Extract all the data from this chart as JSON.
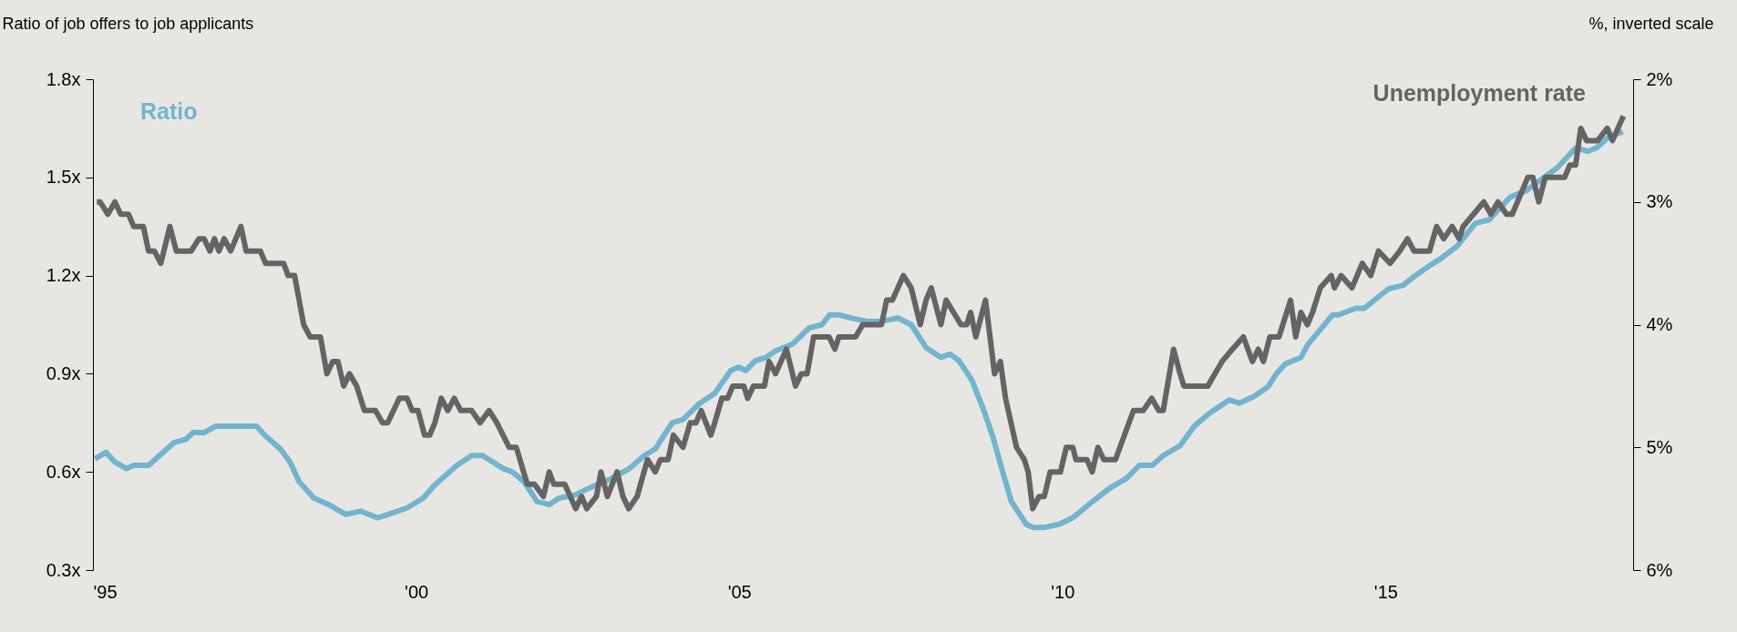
{
  "chart_data": {
    "type": "line",
    "ylabel": "Ratio of job offers to job applicants",
    "y2label": "%, inverted scale",
    "xlim": [
      1995,
      2018.83
    ],
    "xticks": [
      {
        "value": 1995,
        "label": "'95"
      },
      {
        "value": 2000,
        "label": "'00"
      },
      {
        "value": 2005,
        "label": "'05"
      },
      {
        "value": 2010,
        "label": "'10"
      },
      {
        "value": 2015,
        "label": "'15"
      }
    ],
    "ylim": [
      0.3,
      1.8
    ],
    "yticks": [
      {
        "value": 0.3,
        "label": "0.3x"
      },
      {
        "value": 0.6,
        "label": "0.6x"
      },
      {
        "value": 0.9,
        "label": "0.9x"
      },
      {
        "value": 1.2,
        "label": "1.2x"
      },
      {
        "value": 1.5,
        "label": "1.5x"
      },
      {
        "value": 1.8,
        "label": "1.8x"
      }
    ],
    "y2lim": [
      6,
      2
    ],
    "y2ticks": [
      {
        "value": 2,
        "label": "2%"
      },
      {
        "value": 3,
        "label": "3%"
      },
      {
        "value": 4,
        "label": "4%"
      },
      {
        "value": 5,
        "label": "5%"
      },
      {
        "value": 6,
        "label": "6%"
      }
    ],
    "grid": false,
    "marker": "none",
    "line_style": "solid",
    "series": [
      {
        "name": "Ratio",
        "color": "#72b4cf",
        "axis": "y",
        "x": [
          1995.03,
          1995.2,
          1995.34,
          1995.52,
          1995.63,
          1995.86,
          1996.03,
          1996.26,
          1996.44,
          1996.55,
          1996.72,
          1996.9,
          1997.53,
          1997.67,
          1997.9,
          1998.05,
          1998.19,
          1998.42,
          1998.65,
          1998.91,
          1999.14,
          1999.4,
          1999.57,
          1999.86,
          2000.11,
          2000.29,
          2000.63,
          2000.86,
          2001.03,
          2001.35,
          2001.49,
          2001.67,
          2001.87,
          2002.06,
          2002.21,
          2002.47,
          2002.67,
          2003.02,
          2003.3,
          2003.53,
          2003.7,
          2003.96,
          2004.13,
          2004.39,
          2004.62,
          2004.87,
          2004.99,
          2005.1,
          2005.25,
          2005.42,
          2005.56,
          2005.82,
          2006.08,
          2006.28,
          2006.4,
          2006.54,
          2006.74,
          2006.97,
          2007.2,
          2007.46,
          2007.66,
          2007.89,
          2008.12,
          2008.26,
          2008.4,
          2008.6,
          2008.78,
          2008.92,
          2009.09,
          2009.21,
          2009.44,
          2009.55,
          2009.72,
          2009.95,
          2010.16,
          2010.47,
          2010.73,
          2010.99,
          2011.19,
          2011.39,
          2011.56,
          2011.82,
          2012.04,
          2012.28,
          2012.58,
          2012.74,
          2012.96,
          2013.18,
          2013.31,
          2013.45,
          2013.69,
          2013.8,
          2013.97,
          2014.18,
          2014.27,
          2014.54,
          2014.67,
          2014.86,
          2015.05,
          2015.27,
          2015.46,
          2015.68,
          2015.84,
          2016.11,
          2016.39,
          2016.6,
          2016.93,
          2017.18,
          2017.66,
          2017.8,
          2017.94,
          2018.13,
          2018.26,
          2018.43,
          2018.67
        ],
        "values": [
          0.64,
          0.66,
          0.63,
          0.61,
          0.62,
          0.62,
          0.65,
          0.69,
          0.7,
          0.72,
          0.72,
          0.74,
          0.74,
          0.71,
          0.67,
          0.63,
          0.57,
          0.52,
          0.5,
          0.47,
          0.48,
          0.46,
          0.47,
          0.49,
          0.52,
          0.56,
          0.62,
          0.65,
          0.65,
          0.61,
          0.6,
          0.57,
          0.51,
          0.5,
          0.52,
          0.53,
          0.55,
          0.58,
          0.61,
          0.65,
          0.67,
          0.75,
          0.76,
          0.81,
          0.84,
          0.91,
          0.92,
          0.91,
          0.94,
          0.95,
          0.97,
          0.99,
          1.04,
          1.05,
          1.08,
          1.08,
          1.07,
          1.06,
          1.06,
          1.07,
          1.05,
          0.98,
          0.95,
          0.96,
          0.94,
          0.88,
          0.79,
          0.71,
          0.59,
          0.51,
          0.44,
          0.43,
          0.43,
          0.44,
          0.46,
          0.51,
          0.55,
          0.58,
          0.62,
          0.62,
          0.65,
          0.68,
          0.74,
          0.78,
          0.82,
          0.81,
          0.83,
          0.86,
          0.9,
          0.93,
          0.95,
          0.99,
          1.03,
          1.08,
          1.08,
          1.1,
          1.1,
          1.13,
          1.16,
          1.17,
          1.2,
          1.23,
          1.25,
          1.29,
          1.36,
          1.37,
          1.44,
          1.46,
          1.53,
          1.56,
          1.59,
          1.58,
          1.59,
          1.62,
          1.64
        ]
      },
      {
        "name": "Unemployment rate",
        "color": "#646464",
        "axis": "y2",
        "x": [
          1995.06,
          1995.11,
          1995.23,
          1995.34,
          1995.43,
          1995.55,
          1995.63,
          1995.78,
          1995.86,
          1995.95,
          1996.05,
          1996.19,
          1996.29,
          1996.52,
          1996.64,
          1996.72,
          1996.81,
          1996.88,
          1996.95,
          1997.03,
          1997.13,
          1997.29,
          1997.37,
          1997.59,
          1997.67,
          1997.95,
          1998.02,
          1998.12,
          1998.19,
          1998.26,
          1998.36,
          1998.52,
          1998.62,
          1998.71,
          1998.79,
          1998.88,
          1998.97,
          1999.08,
          1999.2,
          1999.37,
          1999.48,
          1999.56,
          1999.74,
          1999.86,
          1999.94,
          2000.03,
          2000.13,
          2000.21,
          2000.29,
          2000.39,
          2000.49,
          2000.59,
          2000.69,
          2000.86,
          2000.99,
          2001.13,
          2001.25,
          2001.44,
          2001.55,
          2001.72,
          2001.83,
          2001.97,
          2002.06,
          2002.13,
          2002.3,
          2002.47,
          2002.56,
          2002.64,
          2002.79,
          2002.86,
          2002.96,
          2003.11,
          2003.2,
          2003.29,
          2003.42,
          2003.58,
          2003.7,
          2003.78,
          2003.9,
          2003.98,
          2004.13,
          2004.24,
          2004.33,
          2004.41,
          2004.56,
          2004.62,
          2004.73,
          2004.82,
          2004.9,
          2005.07,
          2005.13,
          2005.22,
          2005.39,
          2005.46,
          2005.56,
          2005.73,
          2005.87,
          2005.96,
          2006.05,
          2006.15,
          2006.39,
          2006.48,
          2006.54,
          2006.8,
          2006.91,
          2007.2,
          2007.28,
          2007.37,
          2007.54,
          2007.66,
          2007.8,
          2007.89,
          2007.97,
          2008.12,
          2008.2,
          2008.43,
          2008.52,
          2008.58,
          2008.66,
          2008.81,
          2008.95,
          2009.04,
          2009.12,
          2009.29,
          2009.41,
          2009.47,
          2009.54,
          2009.64,
          2009.72,
          2009.81,
          2009.97,
          2010.06,
          2010.16,
          2010.21,
          2010.38,
          2010.46,
          2010.55,
          2010.64,
          2010.82,
          2011.1,
          2011.25,
          2011.38,
          2011.49,
          2011.56,
          2011.72,
          2011.82,
          2011.88,
          2012.25,
          2012.47,
          2012.63,
          2012.8,
          2012.94,
          2013.03,
          2013.11,
          2013.21,
          2013.35,
          2013.53,
          2013.61,
          2013.69,
          2013.79,
          2013.87,
          2013.99,
          2014.16,
          2014.21,
          2014.31,
          2014.48,
          2014.64,
          2014.77,
          2014.89,
          2015.07,
          2015.22,
          2015.34,
          2015.44,
          2015.68,
          2015.79,
          2015.9,
          2016.03,
          2016.14,
          2016.2,
          2016.36,
          2016.52,
          2016.63,
          2016.74,
          2016.87,
          2016.96,
          2017.2,
          2017.28,
          2017.37,
          2017.47,
          2017.77,
          2017.85,
          2017.94,
          2018.02,
          2018.11,
          2018.28,
          2018.43,
          2018.51,
          2018.68
        ],
        "values": [
          3.0,
          3.0,
          3.1,
          3.0,
          3.1,
          3.1,
          3.2,
          3.2,
          3.4,
          3.4,
          3.5,
          3.2,
          3.4,
          3.4,
          3.3,
          3.3,
          3.4,
          3.3,
          3.4,
          3.3,
          3.4,
          3.2,
          3.4,
          3.4,
          3.5,
          3.5,
          3.6,
          3.6,
          3.8,
          4.0,
          4.1,
          4.1,
          4.4,
          4.3,
          4.3,
          4.5,
          4.4,
          4.5,
          4.7,
          4.7,
          4.8,
          4.8,
          4.6,
          4.6,
          4.7,
          4.7,
          4.9,
          4.9,
          4.8,
          4.6,
          4.7,
          4.6,
          4.7,
          4.7,
          4.8,
          4.7,
          4.8,
          5.0,
          5.0,
          5.3,
          5.3,
          5.4,
          5.2,
          5.3,
          5.3,
          5.5,
          5.4,
          5.5,
          5.4,
          5.2,
          5.4,
          5.2,
          5.4,
          5.5,
          5.4,
          5.1,
          5.2,
          5.1,
          5.1,
          4.9,
          5.0,
          4.8,
          4.8,
          4.7,
          4.9,
          4.8,
          4.6,
          4.6,
          4.5,
          4.5,
          4.6,
          4.5,
          4.5,
          4.3,
          4.4,
          4.2,
          4.5,
          4.4,
          4.4,
          4.1,
          4.1,
          4.2,
          4.1,
          4.1,
          4.0,
          4.0,
          3.8,
          3.8,
          3.6,
          3.7,
          4.0,
          3.8,
          3.7,
          4.0,
          3.8,
          4.0,
          4.0,
          3.9,
          4.1,
          3.8,
          4.4,
          4.3,
          4.6,
          5.0,
          5.1,
          5.2,
          5.5,
          5.4,
          5.4,
          5.2,
          5.2,
          5.0,
          5.0,
          5.1,
          5.1,
          5.2,
          5.0,
          5.1,
          5.1,
          4.7,
          4.7,
          4.6,
          4.7,
          4.7,
          4.2,
          4.4,
          4.5,
          4.5,
          4.3,
          4.2,
          4.1,
          4.3,
          4.2,
          4.3,
          4.1,
          4.1,
          3.8,
          4.1,
          3.9,
          4.0,
          3.9,
          3.7,
          3.6,
          3.7,
          3.6,
          3.7,
          3.5,
          3.6,
          3.4,
          3.5,
          3.4,
          3.3,
          3.4,
          3.4,
          3.2,
          3.3,
          3.2,
          3.3,
          3.2,
          3.1,
          3.0,
          3.1,
          3.0,
          3.1,
          3.1,
          2.8,
          2.8,
          3.0,
          2.8,
          2.8,
          2.7,
          2.7,
          2.4,
          2.5,
          2.5,
          2.4,
          2.5,
          2.3
        ]
      }
    ]
  }
}
